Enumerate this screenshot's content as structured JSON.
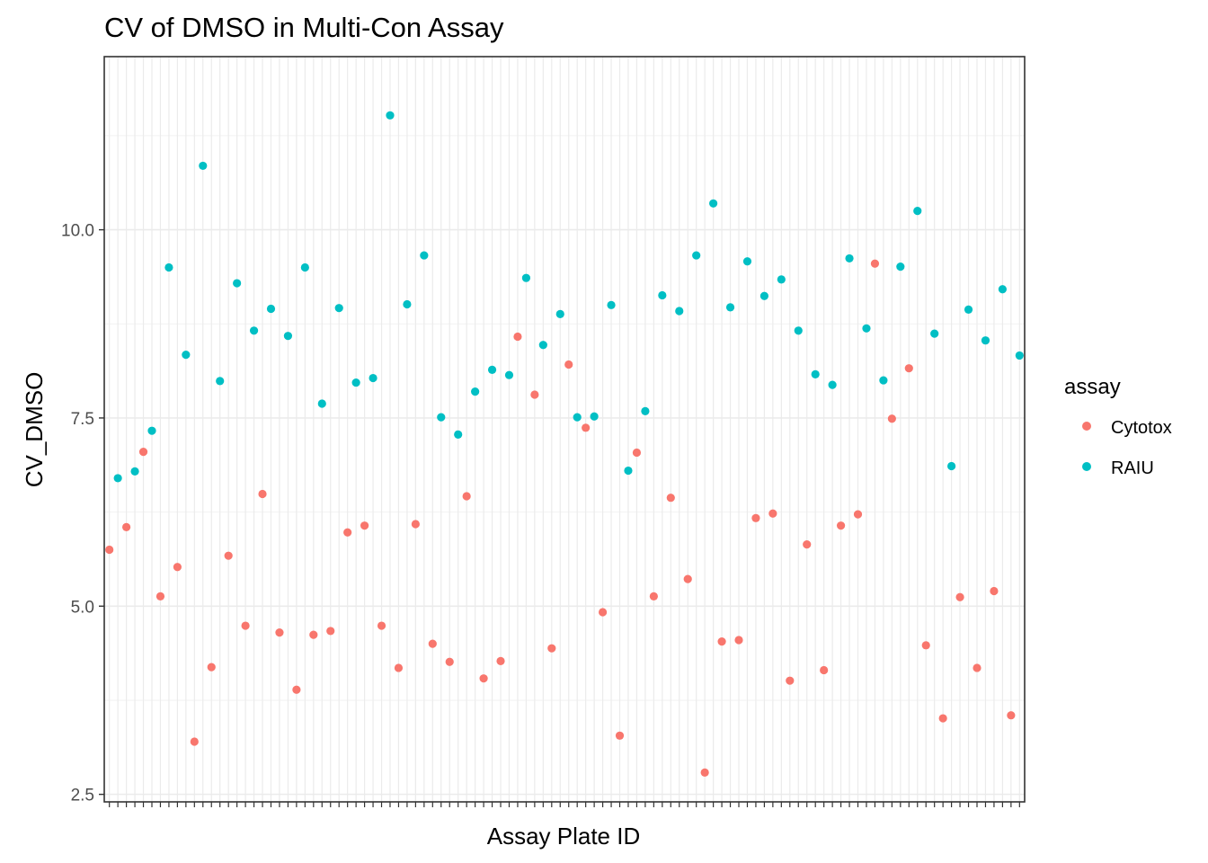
{
  "chart_data": {
    "type": "scatter",
    "title": "CV of DMSO in Multi-Con Assay",
    "xlabel": "Assay Plate ID",
    "ylabel": "CV_DMSO",
    "x_tick_labels_shown": false,
    "x_count": 108,
    "ylim": [
      2.4,
      12.3
    ],
    "yticks": [
      2.5,
      5.0,
      7.5,
      10.0
    ],
    "ytick_labels": [
      "2.5",
      "5.0",
      "7.5",
      "10.0"
    ],
    "grid": true,
    "legend": {
      "title": "assay",
      "position": "right"
    },
    "series": [
      {
        "name": "Cytotox",
        "color": "#F8766D",
        "points": [
          {
            "x": 1,
            "y": 5.75
          },
          {
            "x": 3,
            "y": 6.05
          },
          {
            "x": 5,
            "y": 7.05
          },
          {
            "x": 7,
            "y": 5.13
          },
          {
            "x": 9,
            "y": 5.52
          },
          {
            "x": 11,
            "y": 3.2
          },
          {
            "x": 13,
            "y": 4.19
          },
          {
            "x": 15,
            "y": 5.67
          },
          {
            "x": 17,
            "y": 4.74
          },
          {
            "x": 19,
            "y": 6.49
          },
          {
            "x": 21,
            "y": 4.65
          },
          {
            "x": 23,
            "y": 3.89
          },
          {
            "x": 25,
            "y": 4.62
          },
          {
            "x": 27,
            "y": 4.67
          },
          {
            "x": 29,
            "y": 5.98
          },
          {
            "x": 31,
            "y": 6.07
          },
          {
            "x": 33,
            "y": 4.74
          },
          {
            "x": 35,
            "y": 4.18
          },
          {
            "x": 37,
            "y": 6.09
          },
          {
            "x": 39,
            "y": 4.5
          },
          {
            "x": 41,
            "y": 4.26
          },
          {
            "x": 43,
            "y": 6.46
          },
          {
            "x": 45,
            "y": 4.04
          },
          {
            "x": 47,
            "y": 4.27
          },
          {
            "x": 49,
            "y": 8.58
          },
          {
            "x": 51,
            "y": 7.81
          },
          {
            "x": 53,
            "y": 4.44
          },
          {
            "x": 55,
            "y": 8.21
          },
          {
            "x": 57,
            "y": 7.37
          },
          {
            "x": 59,
            "y": 4.92
          },
          {
            "x": 61,
            "y": 3.28
          },
          {
            "x": 63,
            "y": 7.04
          },
          {
            "x": 65,
            "y": 5.13
          },
          {
            "x": 67,
            "y": 6.44
          },
          {
            "x": 69,
            "y": 5.36
          },
          {
            "x": 71,
            "y": 2.79
          },
          {
            "x": 73,
            "y": 4.53
          },
          {
            "x": 75,
            "y": 4.55
          },
          {
            "x": 77,
            "y": 6.17
          },
          {
            "x": 79,
            "y": 6.23
          },
          {
            "x": 81,
            "y": 4.01
          },
          {
            "x": 83,
            "y": 5.82
          },
          {
            "x": 85,
            "y": 4.15
          },
          {
            "x": 87,
            "y": 6.07
          },
          {
            "x": 89,
            "y": 6.22
          },
          {
            "x": 91,
            "y": 9.55
          },
          {
            "x": 93,
            "y": 7.49
          },
          {
            "x": 95,
            "y": 8.16
          },
          {
            "x": 97,
            "y": 4.48
          },
          {
            "x": 99,
            "y": 3.51
          },
          {
            "x": 101,
            "y": 5.12
          },
          {
            "x": 103,
            "y": 4.18
          },
          {
            "x": 105,
            "y": 5.2
          },
          {
            "x": 107,
            "y": 3.55
          }
        ]
      },
      {
        "name": "RAIU",
        "color": "#00BFC4",
        "points": [
          {
            "x": 2,
            "y": 6.7
          },
          {
            "x": 4,
            "y": 6.79
          },
          {
            "x": 6,
            "y": 7.33
          },
          {
            "x": 8,
            "y": 9.5
          },
          {
            "x": 10,
            "y": 8.34
          },
          {
            "x": 12,
            "y": 10.85
          },
          {
            "x": 14,
            "y": 7.99
          },
          {
            "x": 16,
            "y": 9.29
          },
          {
            "x": 18,
            "y": 8.66
          },
          {
            "x": 20,
            "y": 8.95
          },
          {
            "x": 22,
            "y": 8.59
          },
          {
            "x": 24,
            "y": 9.5
          },
          {
            "x": 26,
            "y": 7.69
          },
          {
            "x": 28,
            "y": 8.96
          },
          {
            "x": 30,
            "y": 7.97
          },
          {
            "x": 32,
            "y": 8.03
          },
          {
            "x": 34,
            "y": 11.52
          },
          {
            "x": 36,
            "y": 9.01
          },
          {
            "x": 38,
            "y": 9.66
          },
          {
            "x": 40,
            "y": 7.51
          },
          {
            "x": 42,
            "y": 7.28
          },
          {
            "x": 44,
            "y": 7.85
          },
          {
            "x": 46,
            "y": 8.14
          },
          {
            "x": 48,
            "y": 8.07
          },
          {
            "x": 50,
            "y": 9.36
          },
          {
            "x": 52,
            "y": 8.47
          },
          {
            "x": 54,
            "y": 8.88
          },
          {
            "x": 56,
            "y": 7.51
          },
          {
            "x": 58,
            "y": 7.52
          },
          {
            "x": 60,
            "y": 9.0
          },
          {
            "x": 62,
            "y": 6.8
          },
          {
            "x": 64,
            "y": 7.59
          },
          {
            "x": 66,
            "y": 9.13
          },
          {
            "x": 68,
            "y": 8.92
          },
          {
            "x": 70,
            "y": 9.66
          },
          {
            "x": 72,
            "y": 10.35
          },
          {
            "x": 74,
            "y": 8.97
          },
          {
            "x": 76,
            "y": 9.58
          },
          {
            "x": 78,
            "y": 9.12
          },
          {
            "x": 80,
            "y": 9.34
          },
          {
            "x": 82,
            "y": 8.66
          },
          {
            "x": 84,
            "y": 8.08
          },
          {
            "x": 86,
            "y": 7.94
          },
          {
            "x": 88,
            "y": 9.62
          },
          {
            "x": 90,
            "y": 8.69
          },
          {
            "x": 92,
            "y": 8.0
          },
          {
            "x": 94,
            "y": 9.51
          },
          {
            "x": 96,
            "y": 10.25
          },
          {
            "x": 98,
            "y": 8.62
          },
          {
            "x": 100,
            "y": 6.86
          },
          {
            "x": 102,
            "y": 8.94
          },
          {
            "x": 104,
            "y": 8.53
          },
          {
            "x": 106,
            "y": 9.21
          },
          {
            "x": 108,
            "y": 8.33
          }
        ]
      }
    ]
  }
}
